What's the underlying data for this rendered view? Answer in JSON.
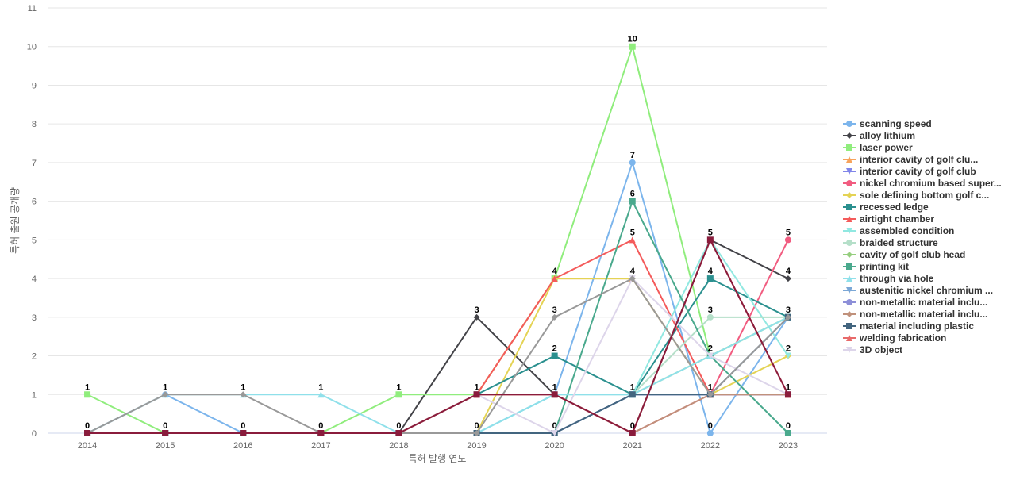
{
  "chart_data": {
    "type": "line",
    "xlabel": "특허 발행 연도",
    "ylabel": "특허 출원 공개량",
    "ylim": [
      0,
      11
    ],
    "yticks": [
      0,
      1,
      2,
      3,
      4,
      5,
      6,
      7,
      8,
      9,
      10,
      11
    ],
    "categories": [
      "2014",
      "2015",
      "2016",
      "2017",
      "2018",
      "2019",
      "2020",
      "2021",
      "2022",
      "2023"
    ],
    "grid": true,
    "legend_position": "right",
    "series": [
      {
        "name": "scanning speed",
        "color": "#7cb5ec",
        "marker": "circle",
        "values": [
          0,
          1,
          0,
          0,
          0,
          0,
          1,
          7,
          0,
          3
        ]
      },
      {
        "name": "alloy lithium",
        "color": "#434348",
        "marker": "diamond",
        "values": [
          0,
          0,
          0,
          0,
          0,
          3,
          1,
          0,
          5,
          4
        ]
      },
      {
        "name": "laser power",
        "color": "#90ed7d",
        "marker": "square",
        "values": [
          1,
          0,
          0,
          0,
          1,
          1,
          4,
          10,
          2,
          3
        ]
      },
      {
        "name": "interior cavity of golf clu...",
        "color": "#f7a35c",
        "marker": "triangle",
        "values": [
          0,
          0,
          0,
          0,
          0,
          1,
          4,
          4,
          1,
          1
        ]
      },
      {
        "name": "interior cavity of golf club",
        "color": "#8085e9",
        "marker": "triangle-down",
        "values": [
          0,
          0,
          0,
          0,
          0,
          0,
          0,
          1,
          1,
          1
        ]
      },
      {
        "name": "nickel chromium based super...",
        "color": "#f15c80",
        "marker": "circle",
        "values": [
          0,
          0,
          0,
          0,
          0,
          1,
          1,
          0,
          1,
          5
        ]
      },
      {
        "name": "sole defining bottom golf c...",
        "color": "#e4d354",
        "marker": "diamond",
        "values": [
          0,
          0,
          0,
          0,
          0,
          0,
          4,
          4,
          1,
          2
        ]
      },
      {
        "name": "recessed ledge",
        "color": "#2b908f",
        "marker": "square",
        "values": [
          0,
          0,
          0,
          0,
          0,
          1,
          2,
          1,
          4,
          3
        ]
      },
      {
        "name": "airtight chamber",
        "color": "#f45b5b",
        "marker": "triangle",
        "values": [
          0,
          0,
          0,
          0,
          0,
          1,
          4,
          5,
          1,
          1
        ]
      },
      {
        "name": "assembled condition",
        "color": "#91e8e1",
        "marker": "triangle-down",
        "values": [
          0,
          0,
          0,
          0,
          0,
          0,
          1,
          1,
          5,
          2
        ]
      },
      {
        "name": "braided structure",
        "color": "#b5dfc9",
        "marker": "circle",
        "values": [
          0,
          0,
          0,
          0,
          0,
          0,
          0,
          1,
          3,
          3
        ]
      },
      {
        "name": "cavity of golf club head",
        "color": "#95ce7e",
        "marker": "diamond",
        "values": [
          0,
          0,
          0,
          0,
          0,
          0,
          0,
          1,
          2,
          3
        ]
      },
      {
        "name": "printing kit",
        "color": "#4aa98d",
        "marker": "square",
        "values": [
          0,
          0,
          0,
          0,
          0,
          0,
          0,
          6,
          2,
          0
        ]
      },
      {
        "name": "through via hole",
        "color": "#8fe0ea",
        "marker": "triangle",
        "values": [
          0,
          1,
          1,
          1,
          0,
          0,
          1,
          1,
          2,
          3
        ]
      },
      {
        "name": "austenitic nickel chromium ...",
        "color": "#7ba7d6",
        "marker": "triangle-down",
        "values": [
          0,
          0,
          0,
          0,
          0,
          0,
          0,
          1,
          1,
          3
        ]
      },
      {
        "name": "non-metallic material inclu...",
        "color": "#8d8fd8",
        "marker": "circle",
        "values": [
          0,
          0,
          0,
          0,
          0,
          0,
          0,
          1,
          1,
          1
        ]
      },
      {
        "name": "non-metallic material inclu...",
        "color": "#c0917b",
        "marker": "diamond",
        "values": [
          0,
          0,
          0,
          0,
          0,
          1,
          1,
          0,
          1,
          1
        ]
      },
      {
        "name": "material including plastic",
        "color": "#43657f",
        "marker": "square",
        "values": [
          0,
          0,
          0,
          0,
          0,
          0,
          0,
          1,
          1,
          3
        ]
      },
      {
        "name": "welding fabrication",
        "color": "#e86a6a",
        "marker": "triangle",
        "values": [
          0,
          0,
          0,
          0,
          0,
          1,
          1,
          0,
          5,
          1
        ]
      },
      {
        "name": "3D object",
        "color": "#ddd5ea",
        "marker": "triangle-down",
        "values": [
          0,
          0,
          0,
          0,
          0,
          1,
          0,
          4,
          2,
          1
        ]
      },
      {
        "name": "",
        "color": "#999999",
        "marker": "diamond",
        "values": [
          0,
          1,
          1,
          0,
          0,
          0,
          3,
          4,
          1,
          3
        ],
        "in_legend": false
      },
      {
        "name": "",
        "color": "#8a1c3c",
        "marker": "square",
        "values": [
          0,
          0,
          0,
          0,
          0,
          1,
          1,
          0,
          5,
          1
        ],
        "in_legend": false
      }
    ],
    "data_labels": [
      {
        "x": "2014",
        "y": 1,
        "text": "1"
      },
      {
        "x": "2014",
        "y": 0,
        "text": "0"
      },
      {
        "x": "2015",
        "y": 1,
        "text": "1"
      },
      {
        "x": "2015",
        "y": 0,
        "text": "0"
      },
      {
        "x": "2016",
        "y": 1,
        "text": "1"
      },
      {
        "x": "2016",
        "y": 0,
        "text": "0"
      },
      {
        "x": "2017",
        "y": 1,
        "text": "1"
      },
      {
        "x": "2017",
        "y": 0,
        "text": "0"
      },
      {
        "x": "2018",
        "y": 1,
        "text": "1"
      },
      {
        "x": "2018",
        "y": 0,
        "text": "0"
      },
      {
        "x": "2019",
        "y": 3,
        "text": "3"
      },
      {
        "x": "2019",
        "y": 1,
        "text": "1"
      },
      {
        "x": "2019",
        "y": 0,
        "text": "0"
      },
      {
        "x": "2020",
        "y": 4,
        "text": "4"
      },
      {
        "x": "2020",
        "y": 3,
        "text": "3"
      },
      {
        "x": "2020",
        "y": 2,
        "text": "2"
      },
      {
        "x": "2020",
        "y": 1,
        "text": "1"
      },
      {
        "x": "2020",
        "y": 0,
        "text": "0"
      },
      {
        "x": "2021",
        "y": 10,
        "text": "10"
      },
      {
        "x": "2021",
        "y": 7,
        "text": "7"
      },
      {
        "x": "2021",
        "y": 6,
        "text": "6"
      },
      {
        "x": "2021",
        "y": 5,
        "text": "5"
      },
      {
        "x": "2021",
        "y": 4,
        "text": "4"
      },
      {
        "x": "2021",
        "y": 1,
        "text": "1"
      },
      {
        "x": "2021",
        "y": 0,
        "text": "0"
      },
      {
        "x": "2022",
        "y": 5,
        "text": "5"
      },
      {
        "x": "2022",
        "y": 4,
        "text": "4"
      },
      {
        "x": "2022",
        "y": 3,
        "text": "3"
      },
      {
        "x": "2022",
        "y": 2,
        "text": "2"
      },
      {
        "x": "2022",
        "y": 1,
        "text": "1"
      },
      {
        "x": "2022",
        "y": 0,
        "text": "0"
      },
      {
        "x": "2023",
        "y": 5,
        "text": "5"
      },
      {
        "x": "2023",
        "y": 4,
        "text": "4"
      },
      {
        "x": "2023",
        "y": 3,
        "text": "3"
      },
      {
        "x": "2023",
        "y": 2,
        "text": "2"
      },
      {
        "x": "2023",
        "y": 1,
        "text": "1"
      },
      {
        "x": "2023",
        "y": 0,
        "text": "0"
      }
    ]
  }
}
